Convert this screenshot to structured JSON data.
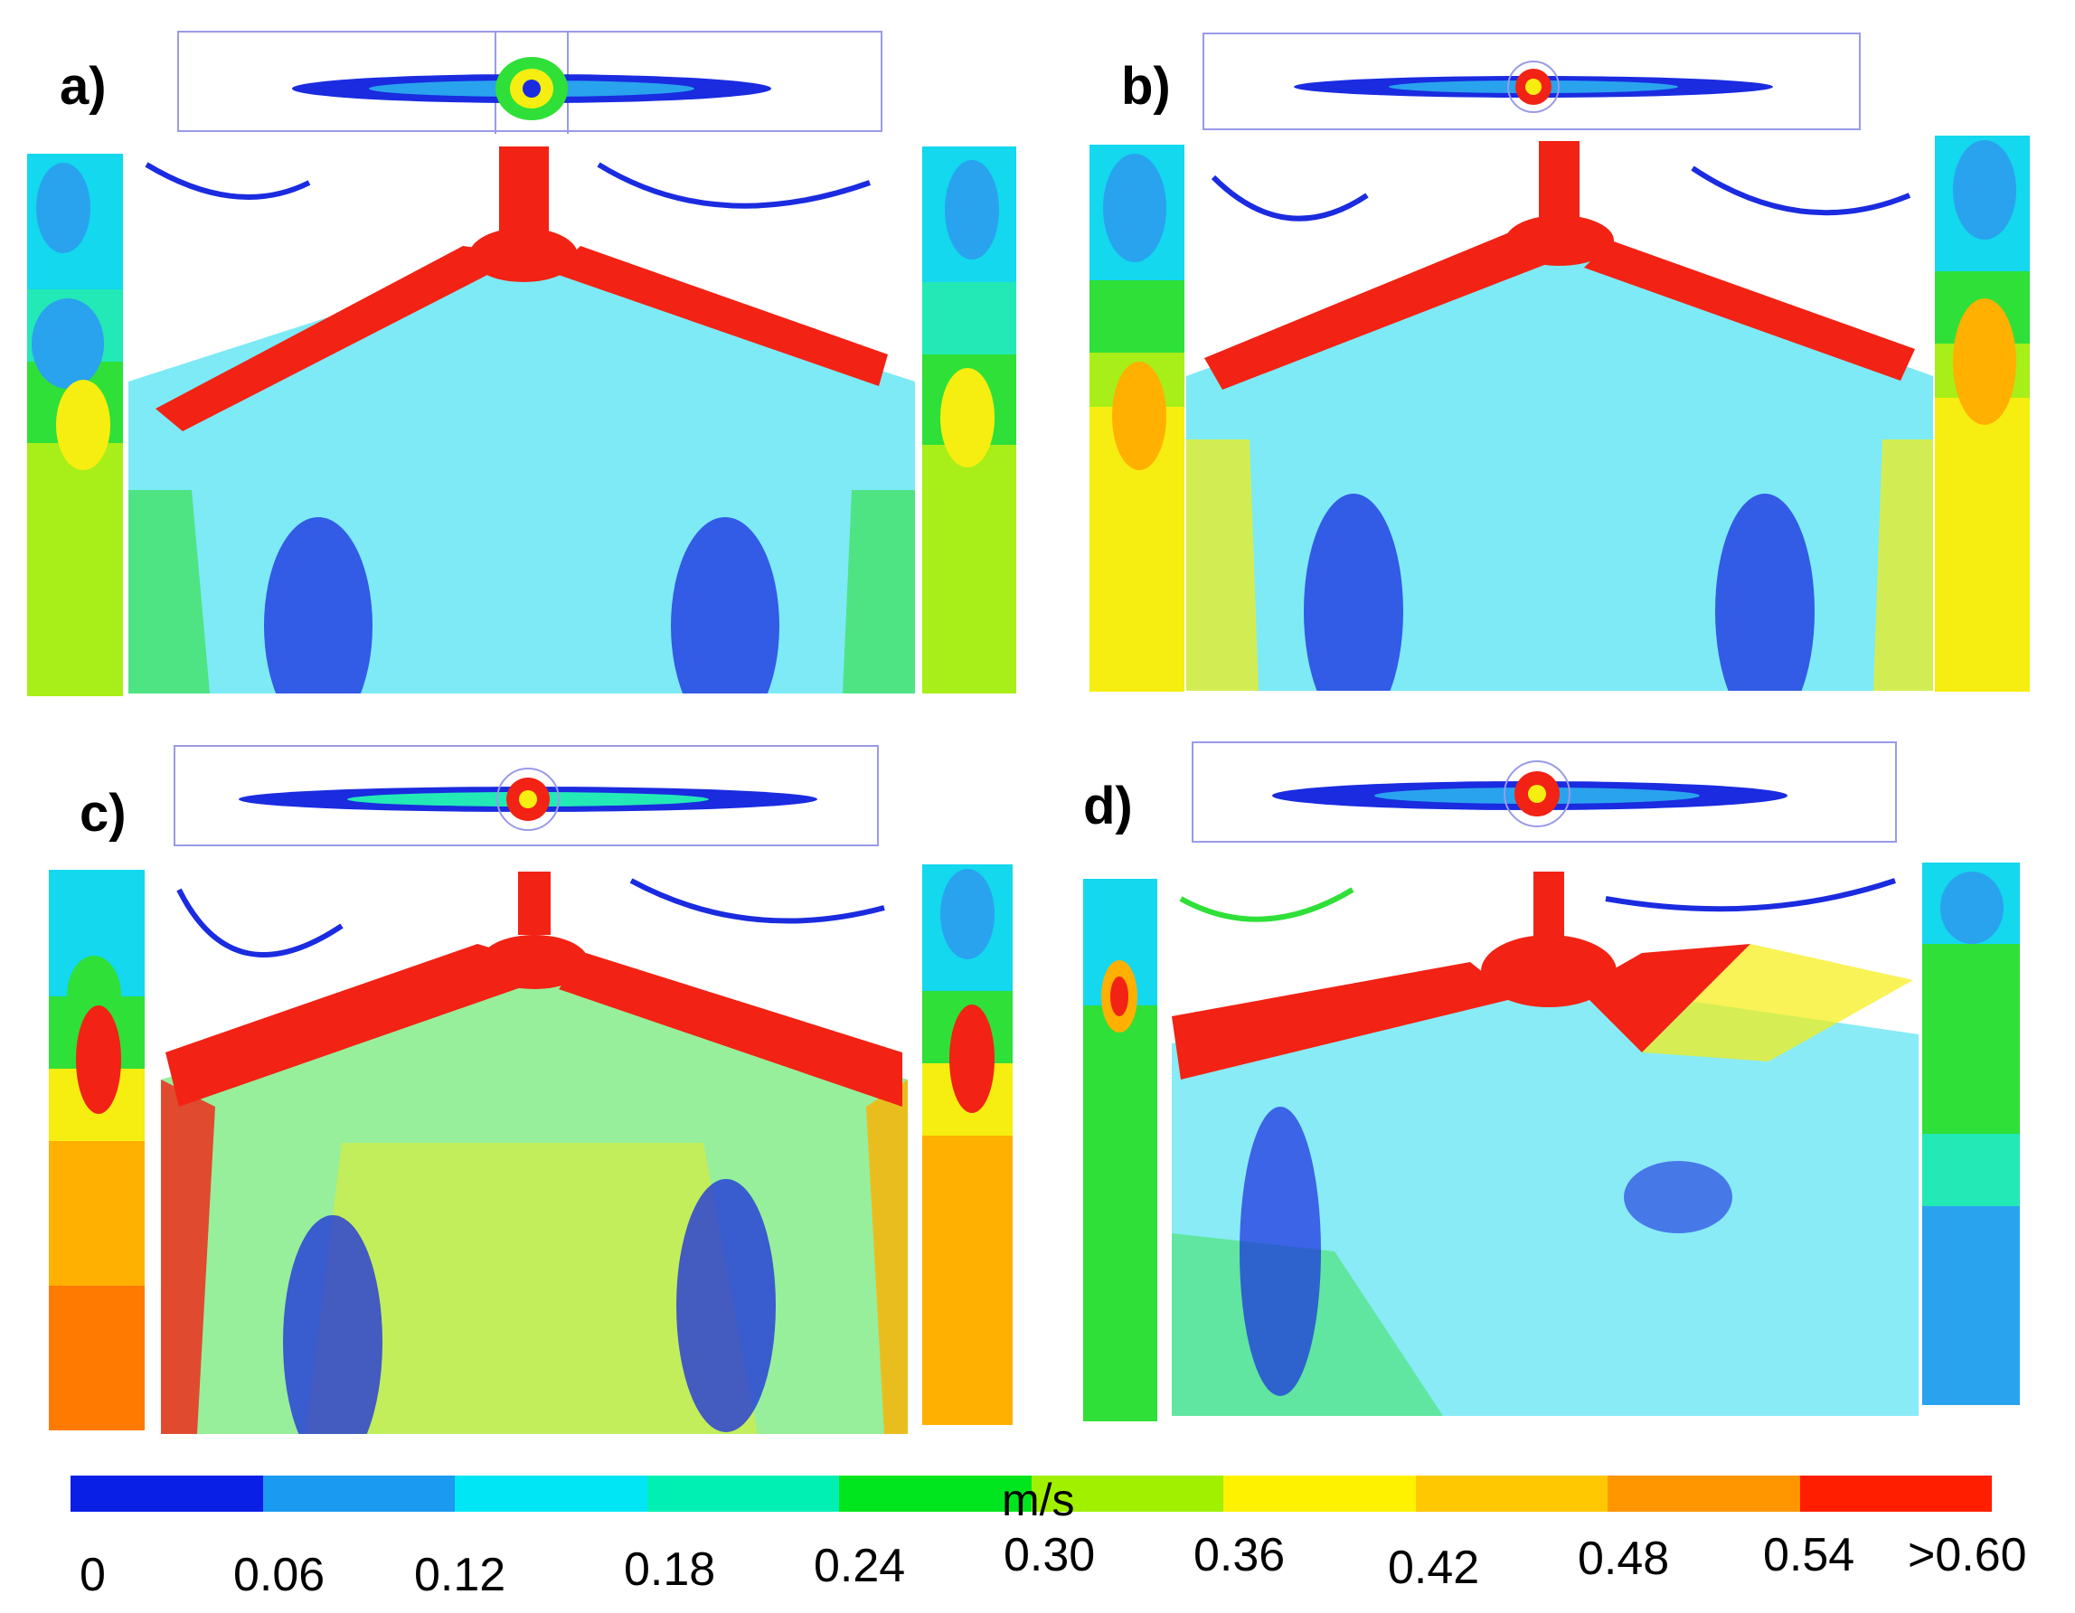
{
  "panels": [
    {
      "id": "a",
      "label": "a)"
    },
    {
      "id": "b",
      "label": "b)"
    },
    {
      "id": "c",
      "label": "c)"
    },
    {
      "id": "d",
      "label": "d)"
    }
  ],
  "colorbar": {
    "unit": "m/s",
    "ticks": [
      "0",
      "0.06",
      "0.12",
      "0.18",
      "0.24",
      "0.30",
      "0.36",
      "0.42",
      "0.48",
      "0.54",
      ">0.60"
    ],
    "colors": [
      "#0a1fe6",
      "#1a9af0",
      "#00e6f5",
      "#00f0b4",
      "#00e61e",
      "#a0f000",
      "#fff200",
      "#ffc800",
      "#ff9600",
      "#ff1e00"
    ]
  },
  "palette": {
    "blue": "#1a2be0",
    "lightblue": "#29a3ee",
    "cyan": "#13d8ee",
    "teal": "#23e9b6",
    "green": "#2fe038",
    "yellowgreen": "#a8ee18",
    "yellow": "#f6ee10",
    "orange": "#ffb000",
    "red": "#f22214",
    "outline": "#9a9ae8"
  }
}
